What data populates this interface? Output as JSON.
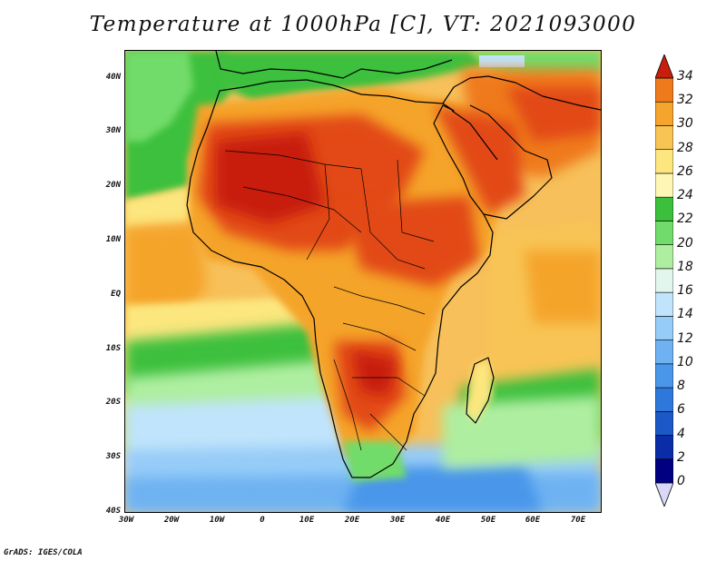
{
  "title": "Temperature at 1000hPa [C], VT: 2021093000",
  "credit": "GrADS: IGES/COLA",
  "latitude_labels": [
    "40N",
    "30N",
    "20N",
    "10N",
    "EQ",
    "10S",
    "20S",
    "30S",
    "40S"
  ],
  "longitude_labels": [
    "30W",
    "20W",
    "10W",
    "0",
    "10E",
    "20E",
    "30E",
    "40E",
    "50E",
    "60E",
    "70E"
  ],
  "colorbar": {
    "labels": [
      "34",
      "32",
      "30",
      "28",
      "26",
      "24",
      "22",
      "20",
      "18",
      "16",
      "14",
      "12",
      "10",
      "8",
      "6",
      "4",
      "2",
      "0"
    ],
    "colors": [
      "#000080",
      "#0a2ca8",
      "#1b58c8",
      "#2e78dc",
      "#4a96ea",
      "#6eb2f2",
      "#96ccf8",
      "#c0e4fb",
      "#e2f6ee",
      "#aeeea0",
      "#72dc6a",
      "#3cc03c",
      "#fef6b4",
      "#fce67e",
      "#f8c454",
      "#f5a42c",
      "#ef7a1c",
      "#e24a14",
      "#c81e0e"
    ],
    "units": "C"
  },
  "map": {
    "domain": "Africa and surrounding oceans",
    "lon_range": [
      -30,
      75
    ],
    "lat_range": [
      -40,
      45
    ],
    "variable": "Temperature",
    "level": "1000hPa",
    "valid_time": "2021093000"
  }
}
